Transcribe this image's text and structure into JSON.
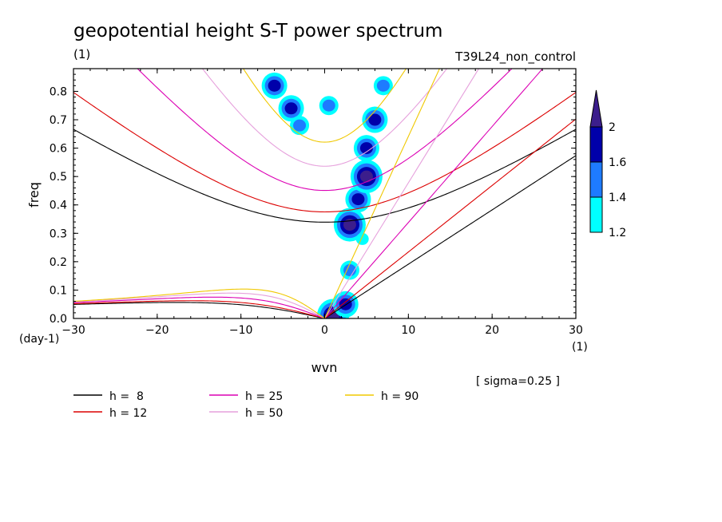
{
  "chart_data": {
    "type": "contour",
    "title": "geopotential height S-T power spectrum",
    "subtitle_left": "(1)",
    "subtitle_right": "T39L24_non_control",
    "xlabel": "wvn",
    "ylabel": "freq",
    "x_unit": "(1)",
    "y_unit": "(day-1)",
    "xlim": [
      -30,
      30
    ],
    "ylim": [
      0,
      0.88
    ],
    "x_ticks": [
      -30,
      -20,
      -10,
      0,
      10,
      20,
      30
    ],
    "x_tick_labels": [
      "-30",
      "-20",
      "-10",
      "0",
      "10",
      "20",
      "30"
    ],
    "y_ticks": [
      0,
      0.1,
      0.2,
      0.3,
      0.4,
      0.5,
      0.6,
      0.7,
      0.8
    ],
    "y_tick_labels": [
      "0.0",
      "0.1",
      "0.2",
      "0.3",
      "0.4",
      "0.5",
      "0.6",
      "0.7",
      "0.8"
    ],
    "note": "[ sigma=0.25 ]",
    "colorbar": {
      "levels": [
        1.2,
        1.4,
        1.6,
        2
      ],
      "labels": [
        "1.2",
        "1.4",
        "1.6",
        "2"
      ],
      "colors": [
        "#00ffff",
        "#1e7bff",
        "#0000aa",
        "#3c1e8c"
      ]
    },
    "dispersion_curves": [
      {
        "name": "h =  8",
        "h": 8,
        "color": "#000000"
      },
      {
        "name": "h = 12",
        "h": 12,
        "color": "#dc0000"
      },
      {
        "name": "h = 25",
        "h": 25,
        "color": "#dc00b4"
      },
      {
        "name": "h = 50",
        "h": 50,
        "color": "#e6a0dc"
      },
      {
        "name": "h = 90",
        "h": 90,
        "color": "#f0c800"
      }
    ],
    "spectral_blobs": [
      {
        "x": 1,
        "y": 0.01,
        "level": 4
      },
      {
        "x": 2.5,
        "y": 0.05,
        "level": 3
      },
      {
        "x": 3,
        "y": 0.33,
        "level": 4
      },
      {
        "x": 4,
        "y": 0.42,
        "level": 3
      },
      {
        "x": 5,
        "y": 0.5,
        "level": 4
      },
      {
        "x": 5,
        "y": 0.6,
        "level": 3
      },
      {
        "x": 6,
        "y": 0.7,
        "level": 3
      },
      {
        "x": 7,
        "y": 0.82,
        "level": 2
      },
      {
        "x": -6,
        "y": 0.82,
        "level": 3
      },
      {
        "x": -4,
        "y": 0.74,
        "level": 3
      },
      {
        "x": -3,
        "y": 0.68,
        "level": 2
      },
      {
        "x": 0.5,
        "y": 0.75,
        "level": 2
      },
      {
        "x": 4.5,
        "y": 0.28,
        "level": 1
      },
      {
        "x": 3,
        "y": 0.17,
        "level": 2
      }
    ]
  },
  "legend": {
    "items": [
      "h =  8",
      "h = 25",
      "h = 90",
      "h = 12",
      "h = 50"
    ]
  }
}
